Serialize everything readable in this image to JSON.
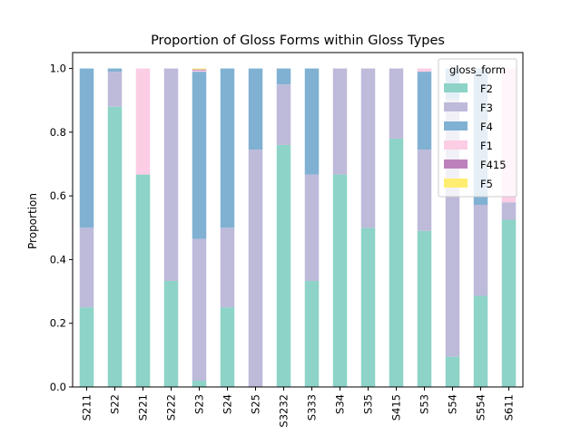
{
  "chart_data": {
    "type": "bar",
    "stacked": true,
    "title": "Proportion of Gloss Forms within Gloss Types",
    "xlabel": "",
    "ylabel": "Proportion",
    "ylim": [
      0,
      1.05
    ],
    "yticks": [
      "0.0",
      "0.2",
      "0.4",
      "0.6",
      "0.8",
      "1.0"
    ],
    "grid": false,
    "legend": {
      "title": "gloss_form",
      "placement": "top-right"
    },
    "categories": [
      "S211",
      "S22",
      "S221",
      "S222",
      "S23",
      "S24",
      "S25",
      "S3232",
      "S333",
      "S34",
      "S35",
      "S415",
      "S53",
      "S54",
      "S554",
      "S611"
    ],
    "series": [
      {
        "name": "F2",
        "color": "#8dd3c7",
        "values": [
          0.25,
          0.88,
          0.667,
          0.333,
          0.02,
          0.25,
          0.0,
          0.76,
          0.333,
          0.667,
          0.5,
          0.78,
          0.49,
          0.095,
          0.286,
          0.525
        ]
      },
      {
        "name": "F3",
        "color": "#bebada",
        "values": [
          0.25,
          0.11,
          0.0,
          0.667,
          0.445,
          0.25,
          0.745,
          0.19,
          0.334,
          0.333,
          0.5,
          0.22,
          0.255,
          0.81,
          0.286,
          0.055
        ]
      },
      {
        "name": "F4",
        "color": "#80b1d3",
        "values": [
          0.5,
          0.01,
          0.0,
          0.0,
          0.525,
          0.5,
          0.255,
          0.05,
          0.333,
          0.0,
          0.0,
          0.0,
          0.245,
          0.095,
          0.428,
          0.0
        ]
      },
      {
        "name": "F1",
        "color": "#fccde5",
        "values": [
          0.0,
          0.0,
          0.333,
          0.0,
          0.004,
          0.0,
          0.0,
          0.0,
          0.0,
          0.0,
          0.0,
          0.0,
          0.01,
          0.0,
          0.0,
          0.42
        ]
      },
      {
        "name": "F415",
        "color": "#bc80bd",
        "values": [
          0.0,
          0.0,
          0.0,
          0.0,
          0.003,
          0.0,
          0.0,
          0.0,
          0.0,
          0.0,
          0.0,
          0.0,
          0.0,
          0.0,
          0.0,
          0.0
        ]
      },
      {
        "name": "F5",
        "color": "#ffed6f",
        "values": [
          0.0,
          0.0,
          0.0,
          0.0,
          0.003,
          0.0,
          0.0,
          0.0,
          0.0,
          0.0,
          0.0,
          0.0,
          0.0,
          0.0,
          0.0,
          0.0
        ]
      }
    ]
  }
}
